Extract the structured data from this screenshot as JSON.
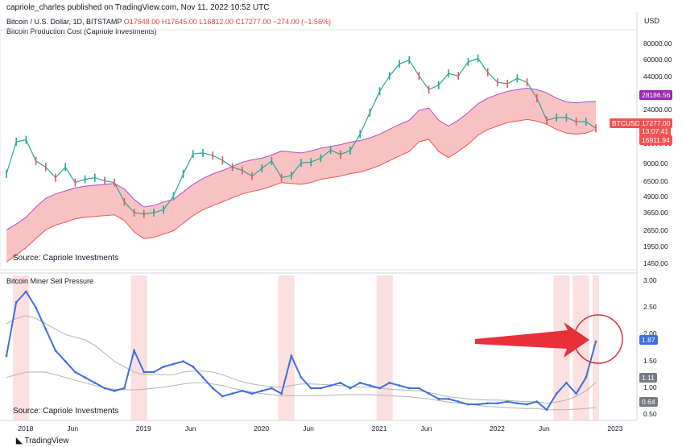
{
  "header": {
    "published": "capriole_charles published on TradingView.com, Nov 11, 2022 10:52 UTC",
    "symbol_prefix": "Bitcoin / U.S. Dollar, 1D, BITSTAMP",
    "ohlc": "O17548.00 H17645.00 L16812.00 C17277.00 −274.00 (−1.56%)",
    "subtitle": "Bitcoin Production Cost (Capriole Investments)",
    "indicator_title": "Bitcoin Miner Sell Pressure"
  },
  "colors": {
    "band_fill": "#f9c2c2",
    "band_edge": "#a64fd8",
    "band_hot": "#ef5350",
    "candle_up": "#26a69a",
    "candle_down": "#ef5350",
    "sell_line": "#3d6fe0",
    "ma_line": "#b3b3b3",
    "highlight": "#fbd2d2",
    "arrow": "#e8303a",
    "circle": "#d9343a"
  },
  "top_panel": {
    "source_label": "Source: Capriole Investments",
    "axis_unit": "USD",
    "scale": "log",
    "y_ticks": [
      "80000.00",
      "60000.00",
      "44000.00",
      "32000.00",
      "24000.00",
      "13000.00",
      "9000.00",
      "6500.00",
      "4900.00",
      "3650.00",
      "2650.00",
      "1950.00",
      "1450.00"
    ],
    "badges": {
      "upper": "28186.56",
      "symbol": "BTCUSD",
      "price": "17277.00",
      "countdown": "13:07:41",
      "lower": "16911.94"
    }
  },
  "bottom_panel": {
    "source_label": "Source: Capriole Investments",
    "y_ticks": [
      "3.00",
      "2.50",
      "2.00",
      "1.50",
      "1.00",
      "0.50"
    ],
    "badges": {
      "current": "1.87",
      "ma_mid": "1.11",
      "ma_low": "0.64"
    }
  },
  "x_axis": {
    "labels": [
      "2018",
      "Jun",
      "2019",
      "Jun",
      "2020",
      "Jun",
      "2021",
      "Jun",
      "2022",
      "Jun",
      "2023"
    ]
  },
  "footer": {
    "brand": "TradingView"
  },
  "chart_data": [
    {
      "type": "line",
      "title": "Bitcoin / U.S. Dollar, 1D, BITSTAMP",
      "subtitle": "Bitcoin Production Cost (Capriole Investments)",
      "ylabel": "USD",
      "y_scale": "log",
      "ylim": [
        1300,
        100000
      ],
      "x": [
        "2017-11",
        "2017-12",
        "2018-01",
        "2018-02",
        "2018-03",
        "2018-04",
        "2018-05",
        "2018-06",
        "2018-07",
        "2018-08",
        "2018-09",
        "2018-10",
        "2018-11",
        "2018-12",
        "2019-01",
        "2019-02",
        "2019-03",
        "2019-04",
        "2019-05",
        "2019-06",
        "2019-07",
        "2019-08",
        "2019-09",
        "2019-10",
        "2019-11",
        "2019-12",
        "2020-01",
        "2020-02",
        "2020-03",
        "2020-04",
        "2020-05",
        "2020-06",
        "2020-07",
        "2020-08",
        "2020-09",
        "2020-10",
        "2020-11",
        "2020-12",
        "2021-01",
        "2021-02",
        "2021-03",
        "2021-04",
        "2021-05",
        "2021-06",
        "2021-07",
        "2021-08",
        "2021-09",
        "2021-10",
        "2021-11",
        "2021-12",
        "2022-01",
        "2022-02",
        "2022-03",
        "2022-04",
        "2022-05",
        "2022-06",
        "2022-07",
        "2022-08",
        "2022-09",
        "2022-10",
        "2022-11"
      ],
      "series": [
        {
          "name": "BTCUSD",
          "values": [
            7500,
            13500,
            14000,
            9500,
            8500,
            7000,
            8500,
            6400,
            6800,
            7000,
            6600,
            6400,
            4500,
            3700,
            3600,
            3700,
            3900,
            5000,
            7500,
            10800,
            11000,
            10500,
            9600,
            8500,
            8000,
            7200,
            8300,
            9500,
            7000,
            7300,
            9200,
            9300,
            10000,
            11600,
            10700,
            11500,
            15500,
            23000,
            34000,
            45000,
            56000,
            60000,
            45000,
            35000,
            38000,
            47000,
            45000,
            58000,
            62000,
            48000,
            40000,
            39000,
            43000,
            40000,
            30000,
            20000,
            21000,
            21000,
            19500,
            19500,
            17277
          ]
        },
        {
          "name": "Production Cost (upper)",
          "values": [
            2700,
            3000,
            3400,
            4100,
            4800,
            5200,
            5500,
            5800,
            6000,
            6100,
            6200,
            6300,
            5700,
            4700,
            4100,
            4200,
            4500,
            4700,
            5400,
            6200,
            6900,
            7500,
            8000,
            8600,
            9300,
            9700,
            10000,
            10600,
            11400,
            11200,
            11000,
            11400,
            12000,
            12400,
            12800,
            13400,
            13800,
            14500,
            15500,
            17000,
            18500,
            20000,
            24000,
            25000,
            20000,
            18000,
            20000,
            23000,
            27000,
            30000,
            32000,
            34000,
            35000,
            36000,
            35000,
            33000,
            30000,
            28000,
            27500,
            28000,
            28186
          ]
        },
        {
          "name": "Production Cost (lower)",
          "values": [
            1500,
            1700,
            1950,
            2300,
            2700,
            2950,
            3100,
            3300,
            3400,
            3450,
            3500,
            3550,
            3200,
            2600,
            2300,
            2350,
            2500,
            2650,
            3050,
            3500,
            3900,
            4200,
            4500,
            4850,
            5200,
            5450,
            5650,
            6000,
            6400,
            6300,
            6200,
            6400,
            6800,
            7000,
            7200,
            7550,
            7750,
            8200,
            8750,
            9550,
            10400,
            11300,
            13500,
            14100,
            11300,
            10100,
            11300,
            12900,
            15200,
            16900,
            18000,
            19200,
            19700,
            20300,
            19700,
            18600,
            16900,
            15800,
            15500,
            15800,
            16912
          ]
        }
      ]
    },
    {
      "type": "line",
      "title": "Bitcoin Miner Sell Pressure",
      "ylim": [
        0.4,
        3.1
      ],
      "x": [
        "2017-11",
        "2017-12",
        "2018-01",
        "2018-02",
        "2018-03",
        "2018-04",
        "2018-05",
        "2018-06",
        "2018-07",
        "2018-08",
        "2018-09",
        "2018-10",
        "2018-11",
        "2018-12",
        "2019-01",
        "2019-02",
        "2019-03",
        "2019-04",
        "2019-05",
        "2019-06",
        "2019-07",
        "2019-08",
        "2019-09",
        "2019-10",
        "2019-11",
        "2019-12",
        "2020-01",
        "2020-02",
        "2020-03",
        "2020-04",
        "2020-05",
        "2020-06",
        "2020-07",
        "2020-08",
        "2020-09",
        "2020-10",
        "2020-11",
        "2020-12",
        "2021-01",
        "2021-02",
        "2021-03",
        "2021-04",
        "2021-05",
        "2021-06",
        "2021-07",
        "2021-08",
        "2021-09",
        "2021-10",
        "2021-11",
        "2021-12",
        "2022-01",
        "2022-02",
        "2022-03",
        "2022-04",
        "2022-05",
        "2022-06",
        "2022-07",
        "2022-08",
        "2022-09",
        "2022-10",
        "2022-11"
      ],
      "series": [
        {
          "name": "Miner Sell Pressure",
          "values": [
            1.6,
            2.6,
            2.8,
            2.5,
            2.1,
            1.7,
            1.5,
            1.3,
            1.2,
            1.1,
            1.0,
            0.95,
            1.0,
            1.7,
            1.3,
            1.3,
            1.4,
            1.45,
            1.5,
            1.4,
            1.2,
            1.0,
            0.85,
            0.9,
            0.95,
            0.9,
            0.95,
            1.0,
            0.9,
            1.6,
            1.2,
            1.0,
            1.0,
            1.05,
            1.1,
            1.0,
            1.1,
            1.05,
            1.0,
            1.1,
            1.05,
            1.0,
            1.0,
            0.9,
            0.8,
            0.8,
            0.75,
            0.7,
            0.7,
            0.72,
            0.72,
            0.75,
            0.72,
            0.7,
            0.75,
            0.6,
            0.9,
            1.1,
            0.9,
            1.2,
            1.87
          ]
        },
        {
          "name": "Moving Average (upper)",
          "values": [
            2.2,
            2.3,
            2.35,
            2.3,
            2.2,
            2.1,
            2.0,
            1.95,
            1.9,
            1.8,
            1.65,
            1.5,
            1.4,
            1.3,
            1.25,
            1.25,
            1.25,
            1.25,
            1.3,
            1.32,
            1.32,
            1.3,
            1.25,
            1.18,
            1.12,
            1.08,
            1.05,
            1.03,
            1.02,
            1.05,
            1.08,
            1.08,
            1.07,
            1.06,
            1.05,
            1.03,
            1.02,
            1.02,
            1.0,
            0.98,
            0.97,
            0.96,
            0.95,
            0.92,
            0.88,
            0.84,
            0.82,
            0.8,
            0.79,
            0.78,
            0.78,
            0.77,
            0.76,
            0.75,
            0.75,
            0.72,
            0.74,
            0.78,
            0.85,
            0.95,
            1.11
          ]
        },
        {
          "name": "Moving Average (lower)",
          "values": [
            1.2,
            1.25,
            1.3,
            1.3,
            1.3,
            1.25,
            1.2,
            1.15,
            1.1,
            1.05,
            1.0,
            0.98,
            0.97,
            0.97,
            0.98,
            1.0,
            1.02,
            1.05,
            1.08,
            1.1,
            1.1,
            1.08,
            1.05,
            1.0,
            0.96,
            0.93,
            0.9,
            0.88,
            0.86,
            0.86,
            0.86,
            0.86,
            0.86,
            0.87,
            0.88,
            0.88,
            0.88,
            0.88,
            0.87,
            0.86,
            0.85,
            0.84,
            0.82,
            0.8,
            0.77,
            0.74,
            0.72,
            0.7,
            0.68,
            0.66,
            0.65,
            0.64,
            0.63,
            0.62,
            0.62,
            0.6,
            0.6,
            0.6,
            0.61,
            0.62,
            0.64
          ]
        }
      ]
    }
  ]
}
